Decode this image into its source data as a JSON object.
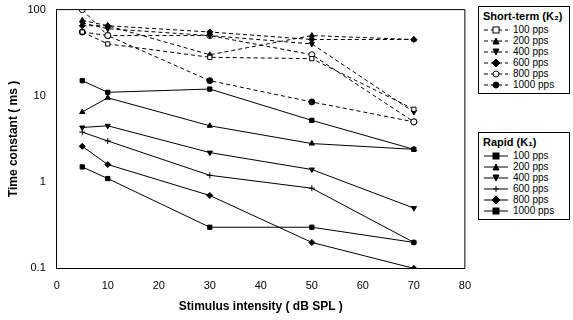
{
  "chart_data": {
    "type": "line",
    "x_label": "Stimulus intensity ( dB SPL )",
    "y_label": "Time constant ( ms )",
    "x": [
      5,
      10,
      30,
      50,
      70
    ],
    "xlim": [
      0,
      80
    ],
    "xticks": [
      0,
      10,
      20,
      30,
      40,
      50,
      60,
      70,
      80
    ],
    "ylim": [
      0.1,
      100
    ],
    "yticks": [
      0.1,
      1,
      10,
      100
    ],
    "log": "y",
    "grid": false,
    "legend": "right",
    "legend_groups": [
      {
        "title": "Short-term (K₂)",
        "series": [
          {
            "name": "100 pps",
            "color": "#000000",
            "marker": "open_square",
            "line_style": "dashed",
            "values": [
              55,
              40,
              28,
              27,
              7
            ]
          },
          {
            "name": "200 pps",
            "color": "#000000",
            "marker": "triangle",
            "line_style": "dashed",
            "values": [
              75,
              65,
              30,
              50,
              45
            ]
          },
          {
            "name": "400 pps",
            "color": "#000000",
            "marker": "down_triangle",
            "line_style": "dashed",
            "values": [
              70,
              60,
              50,
              40,
              6.5
            ]
          },
          {
            "name": "600 pps",
            "color": "#000000",
            "marker": "diamond",
            "line_style": "dashed",
            "values": [
              65,
              65,
              55,
              45,
              45
            ]
          },
          {
            "name": "800 pps",
            "color": "#000000",
            "marker": "open_circle",
            "line_style": "dashed",
            "values": [
              100,
              50,
              50,
              30,
              5
            ]
          },
          {
            "name": "1000 pps",
            "color": "#000000",
            "marker": "circle",
            "line_style": "dashed",
            "values": [
              55,
              50,
              15,
              8.5,
              5
            ]
          }
        ]
      },
      {
        "title": "Rapid (K₁)",
        "series": [
          {
            "name": "100 pps",
            "color": "#000000",
            "marker": "square",
            "line_style": "solid",
            "values": [
              15,
              11,
              12,
              5.2,
              2.4
            ]
          },
          {
            "name": "200 pps",
            "color": "#000000",
            "marker": "triangle",
            "line_style": "solid",
            "values": [
              6.5,
              9.5,
              4.5,
              2.8,
              2.4
            ]
          },
          {
            "name": "400 pps",
            "color": "#000000",
            "marker": "down_triangle",
            "line_style": "solid",
            "values": [
              4.3,
              4.5,
              2.2,
              1.4,
              0.5
            ]
          },
          {
            "name": "600 pps",
            "color": "#000000",
            "marker": "cross",
            "line_style": "solid",
            "values": [
              3.8,
              3.0,
              1.2,
              0.85,
              0.2
            ]
          },
          {
            "name": "800 pps",
            "color": "#000000",
            "marker": "diamond",
            "line_style": "solid",
            "values": [
              2.6,
              1.6,
              0.7,
              0.2,
              0.1
            ]
          },
          {
            "name": "1000 pps",
            "color": "#000000",
            "marker": "square",
            "line_style": "solid",
            "values": [
              1.5,
              1.1,
              0.3,
              0.3,
              0.2
            ]
          }
        ]
      }
    ]
  }
}
